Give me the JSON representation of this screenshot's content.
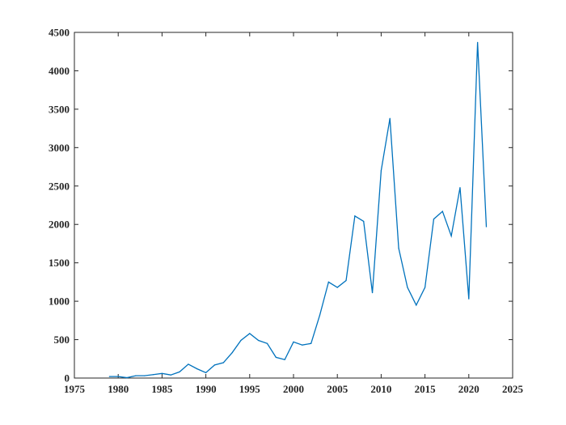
{
  "chart_data": {
    "type": "line",
    "title": "",
    "xlabel": "",
    "ylabel": "",
    "xlim": [
      1975,
      2025
    ],
    "ylim": [
      0,
      4500
    ],
    "xticks": [
      "1975",
      "1980",
      "1985",
      "1990",
      "1995",
      "2000",
      "2005",
      "2010",
      "2015",
      "2020",
      "2025"
    ],
    "yticks": [
      "0",
      "500",
      "1000",
      "1500",
      "2000",
      "2500",
      "3000",
      "3500",
      "4000",
      "4500"
    ],
    "grid": false,
    "color": "#0072BD",
    "series": [
      {
        "x": [
          1979,
          1980,
          1981,
          1982,
          1983,
          1984,
          1985,
          1986,
          1987,
          1988,
          1989,
          1990,
          1991,
          1992,
          1993,
          1994,
          1995,
          1996,
          1997,
          1998,
          1999,
          2000,
          2001,
          2002,
          2003,
          2004,
          2005,
          2006,
          2007,
          2008,
          2009,
          2010,
          2011,
          2012,
          2013,
          2014,
          2015,
          2016,
          2017,
          2018,
          2019,
          2020,
          2021,
          2022
        ],
        "y": [
          20,
          20,
          5,
          30,
          30,
          45,
          60,
          40,
          80,
          180,
          120,
          70,
          170,
          200,
          330,
          490,
          580,
          490,
          450,
          270,
          240,
          470,
          430,
          450,
          820,
          1250,
          1180,
          1270,
          2110,
          2040,
          1110,
          2700,
          3380,
          1690,
          1180,
          950,
          1180,
          2070,
          2170,
          1850,
          2480,
          1030,
          4370,
          1970
        ]
      }
    ]
  }
}
